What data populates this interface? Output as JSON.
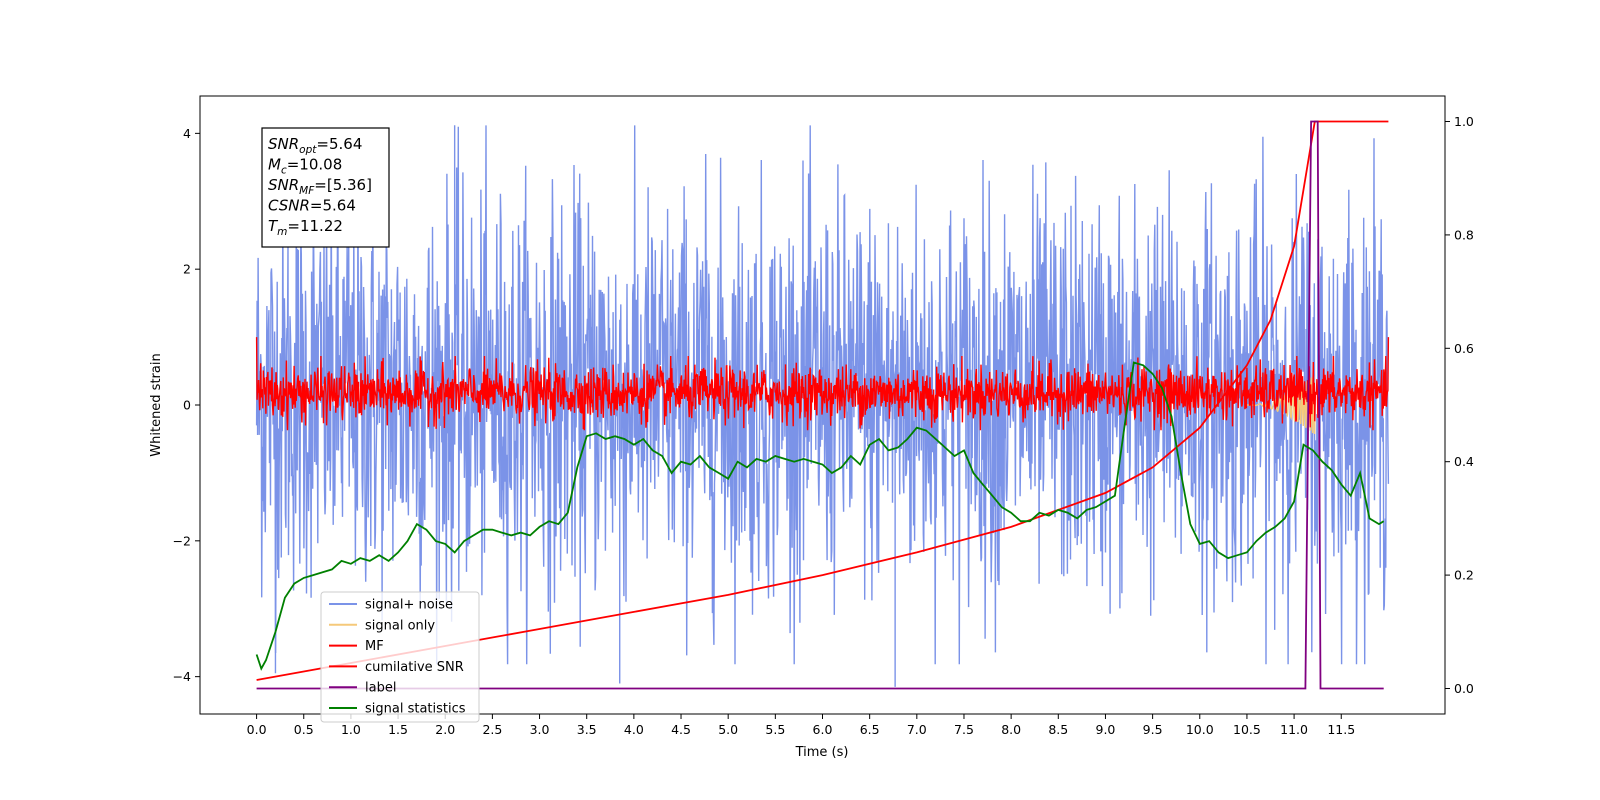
{
  "chart_data": {
    "type": "line",
    "xlabel": "Time (s)",
    "ylabel": "Whitened strain",
    "xlim": [
      -0.6,
      12.6
    ],
    "ylim_left": [
      -4.55,
      4.55
    ],
    "ylim_right": [
      -0.045,
      1.045
    ],
    "x_ticks": [
      0.0,
      0.5,
      1.0,
      1.5,
      2.0,
      2.5,
      3.0,
      3.5,
      4.0,
      4.5,
      5.0,
      5.5,
      6.0,
      6.5,
      7.0,
      7.5,
      8.0,
      8.5,
      9.0,
      9.5,
      10.0,
      10.5,
      11.0,
      11.5
    ],
    "x_tick_labels": [
      "0.0",
      "0.5",
      "1.0",
      "1.5",
      "2.0",
      "2.5",
      "3.0",
      "3.5",
      "4.0",
      "4.5",
      "5.0",
      "5.5",
      "6.0",
      "6.5",
      "7.0",
      "7.5",
      "8.0",
      "8.5",
      "9.0",
      "9.5",
      "10.0",
      "10.5",
      "11.0",
      "11.5"
    ],
    "y_left_ticks": [
      -4,
      -2,
      0,
      2,
      4
    ],
    "y_left_tick_labels": [
      "−4",
      "−2",
      "0",
      "2",
      "4"
    ],
    "y_right_ticks": [
      0.0,
      0.2,
      0.4,
      0.6,
      0.8,
      1.0
    ],
    "y_right_tick_labels": [
      "0.0",
      "0.2",
      "0.4",
      "0.6",
      "0.8",
      "1.0"
    ],
    "grid": false,
    "legend_position": "lower-left",
    "annotation": {
      "lines": [
        {
          "base": "SNR",
          "sub": "opt",
          "value": "=5.64"
        },
        {
          "base": "M",
          "sub": "c",
          "value": "=10.08"
        },
        {
          "base": "SNR",
          "sub": "MF",
          "value": "=[5.36]"
        },
        {
          "base": "CSNR",
          "sub": "",
          "value": "=5.64"
        },
        {
          "base": "T",
          "sub": "m",
          "value": "=11.22"
        }
      ]
    },
    "series": [
      {
        "name": "signal+ noise",
        "axis": "left",
        "color": "#7b93e8",
        "kind": "noise",
        "x_range": [
          0.0,
          12.0
        ],
        "envelope": [
          -3.3,
          3.6
        ],
        "extreme_min": -4.15,
        "extreme_max": 4.12
      },
      {
        "name": "signal only",
        "axis": "left",
        "color": "#f5c97a",
        "kind": "chirp",
        "x_range": [
          10.5,
          11.22
        ],
        "amplitude_max": 0.45
      },
      {
        "name": "MF",
        "axis": "left",
        "color": "#ff0000",
        "kind": "noise",
        "x_range": [
          0.0,
          12.0
        ],
        "envelope": [
          -0.3,
          0.65
        ],
        "endpoints": [
          1.0,
          1.0
        ]
      },
      {
        "name": "cumilative SNR",
        "axis": "right",
        "color": "#ff0000",
        "kind": "line",
        "x": [
          0.0,
          1.0,
          2.0,
          3.0,
          4.0,
          5.0,
          6.0,
          7.0,
          8.0,
          8.5,
          9.0,
          9.5,
          10.0,
          10.5,
          10.75,
          11.0,
          11.1,
          11.22,
          11.25,
          12.0
        ],
        "y": [
          0.015,
          0.045,
          0.075,
          0.105,
          0.135,
          0.165,
          0.2,
          0.24,
          0.285,
          0.315,
          0.345,
          0.39,
          0.46,
          0.57,
          0.65,
          0.78,
          0.88,
          1.0,
          1.0,
          1.0
        ]
      },
      {
        "name": "label",
        "axis": "right",
        "color": "#800080",
        "kind": "line",
        "x": [
          0.0,
          11.12,
          11.18,
          11.25,
          11.28,
          11.95
        ],
        "y": [
          0.0,
          0.0,
          1.0,
          1.0,
          0.0,
          0.0
        ]
      },
      {
        "name": "signal statistics",
        "axis": "right",
        "color": "#008000",
        "kind": "line",
        "x": [
          0.0,
          0.05,
          0.1,
          0.2,
          0.3,
          0.4,
          0.5,
          0.6,
          0.7,
          0.8,
          0.9,
          1.0,
          1.1,
          1.2,
          1.3,
          1.4,
          1.5,
          1.6,
          1.7,
          1.8,
          1.9,
          2.0,
          2.1,
          2.2,
          2.3,
          2.4,
          2.5,
          2.6,
          2.7,
          2.8,
          2.9,
          3.0,
          3.1,
          3.2,
          3.3,
          3.4,
          3.5,
          3.6,
          3.7,
          3.8,
          3.9,
          4.0,
          4.1,
          4.2,
          4.3,
          4.4,
          4.5,
          4.6,
          4.7,
          4.8,
          4.9,
          5.0,
          5.1,
          5.2,
          5.3,
          5.4,
          5.5,
          5.6,
          5.7,
          5.8,
          5.9,
          6.0,
          6.1,
          6.2,
          6.3,
          6.4,
          6.5,
          6.6,
          6.7,
          6.8,
          6.9,
          7.0,
          7.1,
          7.2,
          7.3,
          7.4,
          7.5,
          7.6,
          7.7,
          7.8,
          7.9,
          8.0,
          8.1,
          8.2,
          8.3,
          8.4,
          8.5,
          8.6,
          8.7,
          8.8,
          8.9,
          9.0,
          9.1,
          9.2,
          9.3,
          9.4,
          9.5,
          9.6,
          9.7,
          9.8,
          9.9,
          10.0,
          10.1,
          10.2,
          10.3,
          10.4,
          10.5,
          10.6,
          10.7,
          10.8,
          10.9,
          11.0,
          11.1,
          11.2,
          11.3,
          11.4,
          11.5,
          11.6,
          11.7,
          11.8,
          11.9,
          11.95
        ],
        "y": [
          0.06,
          0.035,
          0.05,
          0.1,
          0.16,
          0.185,
          0.195,
          0.2,
          0.205,
          0.21,
          0.225,
          0.22,
          0.23,
          0.225,
          0.235,
          0.225,
          0.24,
          0.26,
          0.29,
          0.28,
          0.26,
          0.255,
          0.24,
          0.26,
          0.27,
          0.28,
          0.28,
          0.275,
          0.27,
          0.275,
          0.27,
          0.285,
          0.295,
          0.29,
          0.31,
          0.39,
          0.445,
          0.45,
          0.44,
          0.445,
          0.44,
          0.43,
          0.44,
          0.42,
          0.41,
          0.38,
          0.4,
          0.395,
          0.41,
          0.39,
          0.38,
          0.37,
          0.4,
          0.39,
          0.405,
          0.4,
          0.41,
          0.405,
          0.4,
          0.405,
          0.4,
          0.395,
          0.38,
          0.39,
          0.41,
          0.395,
          0.43,
          0.44,
          0.42,
          0.425,
          0.44,
          0.46,
          0.455,
          0.44,
          0.425,
          0.41,
          0.42,
          0.38,
          0.36,
          0.34,
          0.32,
          0.31,
          0.295,
          0.295,
          0.31,
          0.305,
          0.315,
          0.31,
          0.3,
          0.315,
          0.32,
          0.33,
          0.34,
          0.46,
          0.575,
          0.57,
          0.555,
          0.53,
          0.48,
          0.38,
          0.29,
          0.255,
          0.26,
          0.24,
          0.23,
          0.235,
          0.24,
          0.26,
          0.275,
          0.285,
          0.3,
          0.33,
          0.43,
          0.42,
          0.4,
          0.385,
          0.36,
          0.34,
          0.38,
          0.3,
          0.29,
          0.295
        ]
      }
    ]
  }
}
